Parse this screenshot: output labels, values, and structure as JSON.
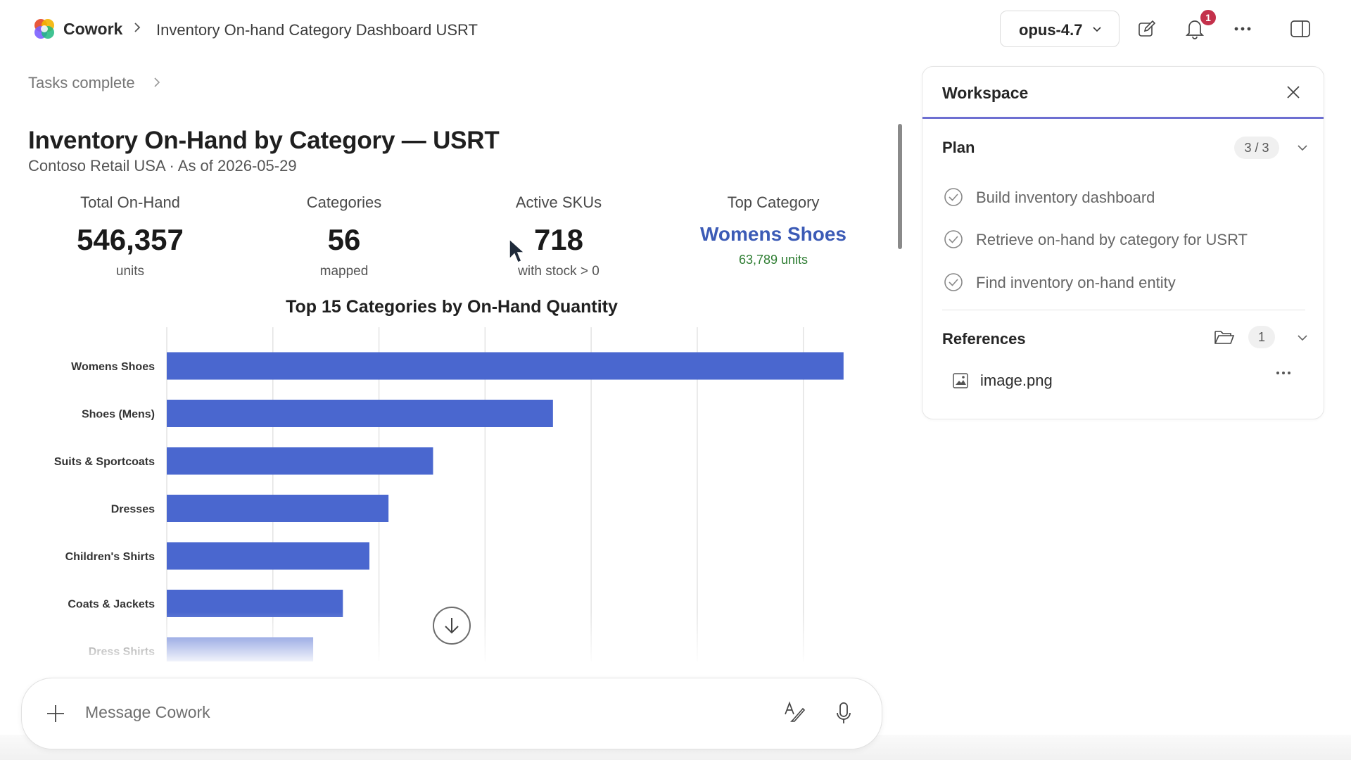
{
  "header": {
    "app_name": "Cowork",
    "breadcrumb_title": "Inventory On-hand Category Dashboard USRT",
    "model": "opus-4.7",
    "notification_count": "1"
  },
  "main": {
    "tasks_status": "Tasks complete",
    "dashboard_title": "Inventory On-Hand by Category — USRT",
    "dashboard_subtitle": "Contoso Retail USA · As of 2026-05-29",
    "kpis": [
      {
        "label": "Total On-Hand",
        "value": "546,357",
        "note": "units"
      },
      {
        "label": "Categories",
        "value": "56",
        "note": "mapped"
      },
      {
        "label": "Active SKUs",
        "value": "718",
        "note": "with stock > 0"
      },
      {
        "label": "Top Category",
        "value": "Womens Shoes",
        "note": "63,789 units"
      }
    ]
  },
  "chart_data": {
    "type": "bar",
    "orientation": "horizontal",
    "title": "Top 15 Categories by On-Hand Quantity",
    "categories": [
      "Womens Shoes",
      "Shoes (Mens)",
      "Suits & Sportcoats",
      "Dresses",
      "Children's Shirts",
      "Coats & Jackets",
      "Dress Shirts"
    ],
    "values": [
      63789,
      36400,
      25100,
      20900,
      19100,
      16600,
      13800
    ],
    "xlim": [
      0,
      64000
    ],
    "grid": true,
    "color": "#4a67cf"
  },
  "composer": {
    "placeholder": "Message Cowork"
  },
  "workspace": {
    "title": "Workspace",
    "plan": {
      "label": "Plan",
      "progress": "3 / 3",
      "items": [
        "Build inventory dashboard",
        "Retrieve on-hand by category for USRT",
        "Find inventory on-hand entity"
      ]
    },
    "references": {
      "label": "References",
      "count": "1",
      "files": [
        "image.png"
      ]
    }
  },
  "colors": {
    "accent": "#6d6fd1",
    "link": "#3c5bb6",
    "positive": "#2e7d32",
    "badge": "#c4314b",
    "bar": "#4a67cf"
  }
}
